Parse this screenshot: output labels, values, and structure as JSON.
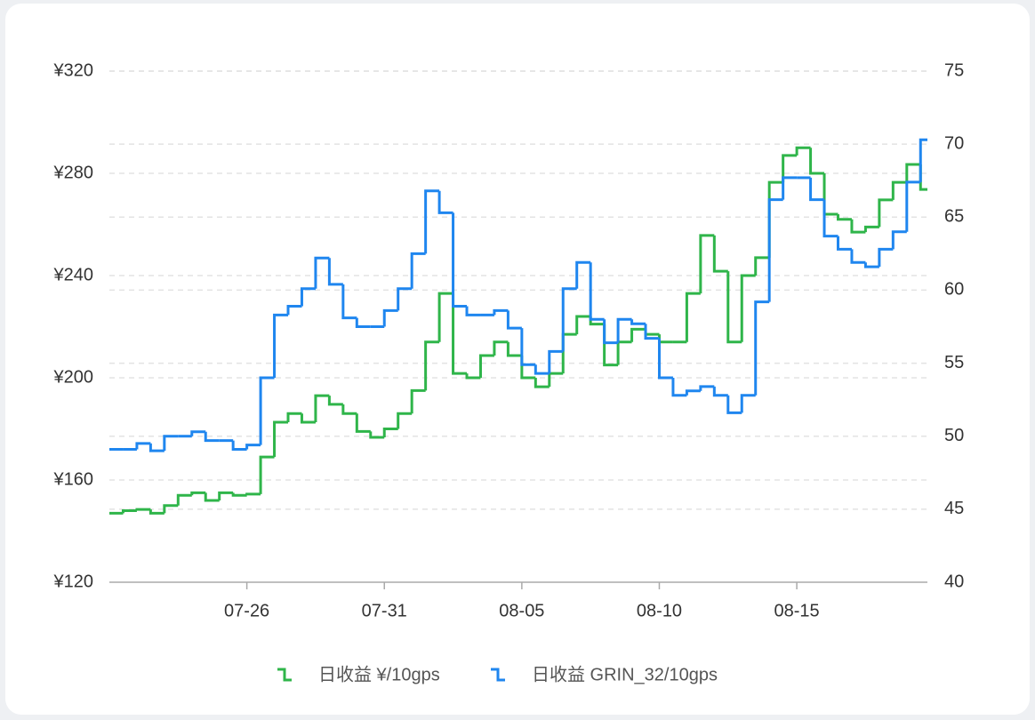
{
  "chart_data": {
    "type": "line",
    "step": true,
    "grid": true,
    "categories": [
      null,
      null,
      null,
      null,
      null,
      null,
      null,
      null,
      null,
      null,
      "07-26",
      null,
      null,
      null,
      null,
      null,
      null,
      null,
      null,
      null,
      "07-31",
      null,
      null,
      null,
      null,
      null,
      null,
      null,
      null,
      null,
      "08-05",
      null,
      null,
      null,
      null,
      null,
      null,
      null,
      null,
      null,
      "08-10",
      null,
      null,
      null,
      null,
      null,
      null,
      null,
      null,
      null,
      "08-15",
      null,
      null,
      null,
      null,
      null,
      null,
      null,
      null,
      null
    ],
    "ylim": [
      120,
      320
    ],
    "yticks": [
      {
        "value": 120,
        "label": "¥120"
      },
      {
        "value": 160,
        "label": "¥160"
      },
      {
        "value": 200,
        "label": "¥200"
      },
      {
        "value": 240,
        "label": "¥240"
      },
      {
        "value": 280,
        "label": "¥280"
      },
      {
        "value": 320,
        "label": "¥320"
      }
    ],
    "y2lim": [
      40,
      75
    ],
    "y2ticks": [
      40,
      45,
      50,
      55,
      60,
      65,
      70,
      75
    ],
    "series": [
      {
        "name": "日收益 ¥/10gps",
        "color": "#2fb54a",
        "axis": "y",
        "values": [
          147,
          148,
          148.5,
          147,
          150,
          154,
          155,
          152,
          155,
          154,
          154.5,
          169,
          182.6,
          186,
          182.6,
          193,
          189.6,
          186,
          179,
          176.7,
          180,
          186,
          195,
          214,
          233,
          201.7,
          200,
          208.7,
          214,
          208.7,
          200,
          196.5,
          201.7,
          217,
          224,
          221,
          205,
          214,
          219,
          217,
          214,
          214,
          233,
          255.7,
          241.7,
          214,
          240,
          247,
          276.5,
          287,
          290,
          280,
          264,
          262,
          257,
          259,
          269.6,
          276.5,
          283.5,
          273.7
        ]
      },
      {
        "name": "日收益 GRIN_32/10gps",
        "color": "#1f86ef",
        "axis": "y2",
        "values": [
          49.1,
          49.1,
          49.5,
          49,
          50,
          50,
          50.3,
          49.7,
          49.7,
          49.1,
          49.4,
          54,
          58.3,
          58.9,
          60.1,
          62.2,
          60.4,
          58.1,
          57.5,
          57.5,
          58.6,
          60.1,
          62.5,
          66.8,
          65.3,
          58.9,
          58.3,
          58.3,
          58.6,
          57.4,
          54.9,
          54.3,
          55.8,
          60.1,
          61.9,
          58,
          56.4,
          58,
          57.7,
          56.7,
          54,
          52.8,
          53.1,
          53.4,
          52.8,
          51.6,
          52.8,
          59.2,
          66.2,
          67.7,
          67.7,
          66.2,
          63.7,
          62.8,
          61.9,
          61.6,
          62.8,
          64,
          67.4,
          70.3
        ]
      }
    ]
  }
}
